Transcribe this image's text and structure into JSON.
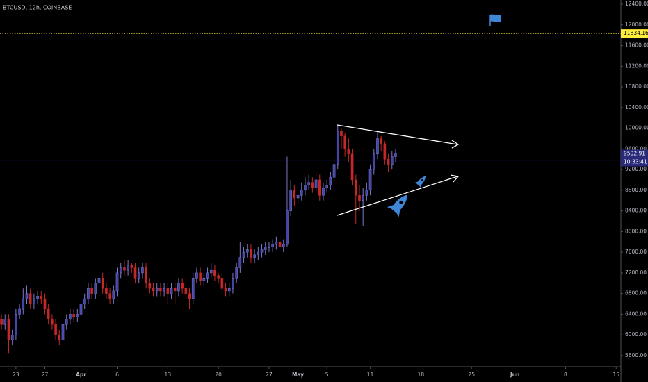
{
  "chart_data": {
    "type": "candlestick",
    "title": "BTCUSD, 12h, COINBASE",
    "up_color": "#4343a8",
    "down_color": "#c62828",
    "xlim": [
      -0.4,
      171.3
    ],
    "xticks": [
      {
        "value": 4,
        "label": "23"
      },
      {
        "value": 12,
        "label": "27"
      },
      {
        "value": 22,
        "label": "Apr"
      },
      {
        "value": 32,
        "label": "6"
      },
      {
        "value": 46,
        "label": "13"
      },
      {
        "value": 60,
        "label": "20"
      },
      {
        "value": 74,
        "label": "27"
      },
      {
        "value": 82,
        "label": "May"
      },
      {
        "value": 90,
        "label": "5"
      },
      {
        "value": 102,
        "label": "11"
      },
      {
        "value": 116,
        "label": "18"
      },
      {
        "value": 130,
        "label": "25"
      },
      {
        "value": 142,
        "label": "Jun"
      },
      {
        "value": 156,
        "label": "8"
      },
      {
        "value": 170,
        "label": "15"
      }
    ],
    "ylim": [
      5384,
      12481
    ],
    "yticks": [
      {
        "value": 5600,
        "label": "5600.00"
      },
      {
        "value": 6000,
        "label": "6000.00"
      },
      {
        "value": 6400,
        "label": "6400.00"
      },
      {
        "value": 6800,
        "label": "6800.00"
      },
      {
        "value": 7200,
        "label": "7200.00"
      },
      {
        "value": 7600,
        "label": "7600.00"
      },
      {
        "value": 8000,
        "label": "8000.00"
      },
      {
        "value": 8400,
        "label": "8400.00"
      },
      {
        "value": 8800,
        "label": "8800.00"
      },
      {
        "value": 9200,
        "label": "9200.00"
      },
      {
        "value": 9600,
        "label": "9600.00"
      },
      {
        "value": 10000,
        "label": "10000.00"
      },
      {
        "value": 10400,
        "label": "10400.00"
      },
      {
        "value": 10800,
        "label": "10800.00"
      },
      {
        "value": 11200,
        "label": "11200.00"
      },
      {
        "value": 11600,
        "label": "11600.00"
      },
      {
        "value": 12000,
        "label": "12000.00"
      },
      {
        "value": 12400,
        "label": "12400.00"
      }
    ],
    "level": {
      "value": 11834.16,
      "color": "#ffeb3b"
    },
    "last_price": {
      "value": 9502.91,
      "countdown": "10:33:41",
      "color": "#2a2a7a"
    },
    "open": [
      6300,
      6200,
      6300,
      5900,
      6000,
      6400,
      6500,
      6700,
      6800,
      6600,
      6700,
      6750,
      6700,
      6500,
      6300,
      6200,
      6000,
      5900,
      6200,
      6300,
      6400,
      6350,
      6400,
      6600,
      6700,
      6900,
      6800,
      7000,
      7100,
      6900,
      6800,
      6700,
      6850,
      7200,
      7300,
      7250,
      7350,
      7300,
      7100,
      7200,
      7300,
      7000,
      6900,
      6850,
      6900,
      6850,
      6900,
      6800,
      6900,
      6850,
      7000,
      6900,
      6800,
      6700,
      7100,
      7200,
      7050,
      7100,
      7200,
      7250,
      7150,
      7100,
      6900,
      6850,
      6900,
      7100,
      7300,
      7500,
      7600,
      7650,
      7500,
      7550,
      7600,
      7650,
      7700,
      7700,
      7750,
      7800,
      7700,
      7750,
      8400,
      8800,
      8650,
      8700,
      8800,
      8900,
      8950,
      8850,
      9000,
      8700,
      8850,
      8900,
      9050,
      9300,
      9950,
      9850,
      9600,
      9500,
      9000,
      8700,
      8600,
      8700,
      8800,
      9200,
      9500,
      9800,
      9700,
      9400,
      9300,
      9450
    ],
    "high": [
      6400,
      6400,
      6400,
      6100,
      6500,
      6600,
      6900,
      6950,
      6900,
      6800,
      6850,
      6850,
      6800,
      6600,
      6400,
      6300,
      6100,
      6300,
      6400,
      6500,
      6500,
      6500,
      6700,
      6800,
      7000,
      7000,
      7100,
      7500,
      7200,
      7000,
      6900,
      6950,
      7300,
      7400,
      7450,
      7450,
      7400,
      7400,
      7300,
      7400,
      7400,
      7100,
      7000,
      7000,
      7000,
      7000,
      7000,
      7000,
      7000,
      7100,
      7100,
      7000,
      6900,
      7200,
      7300,
      7300,
      7200,
      7300,
      7400,
      7350,
      7200,
      7200,
      7000,
      7000,
      7200,
      7400,
      7800,
      7700,
      7750,
      7750,
      7650,
      7700,
      7750,
      7800,
      7800,
      7850,
      7900,
      7900,
      7850,
      9450,
      9000,
      8900,
      8850,
      8950,
      9050,
      9100,
      9050,
      9150,
      9100,
      8950,
      9000,
      9150,
      9450,
      10050,
      10000,
      9900,
      9800,
      9600,
      9100,
      8900,
      8850,
      8950,
      9300,
      9600,
      9950,
      9850,
      9750,
      9500,
      9550,
      9600
    ],
    "low": [
      6100,
      6100,
      5650,
      5800,
      5900,
      6300,
      6400,
      6600,
      6500,
      6500,
      6600,
      6600,
      6400,
      6200,
      6100,
      5900,
      5800,
      5800,
      6100,
      6200,
      6250,
      6250,
      6300,
      6500,
      6600,
      6700,
      6700,
      6900,
      6800,
      6700,
      6600,
      6600,
      6750,
      7100,
      7150,
      7150,
      7200,
      7000,
      7000,
      7100,
      6900,
      6800,
      6750,
      6750,
      6750,
      6750,
      6600,
      6700,
      6600,
      6750,
      6800,
      6700,
      6500,
      6600,
      7000,
      6950,
      6950,
      7000,
      7100,
      7050,
      7000,
      6800,
      6750,
      6750,
      6800,
      7000,
      7200,
      7400,
      7500,
      7400,
      7400,
      7450,
      7500,
      7550,
      7600,
      7600,
      7650,
      7600,
      7600,
      7700,
      8300,
      8500,
      8550,
      8600,
      8700,
      8800,
      8750,
      8750,
      8600,
      8600,
      8750,
      8800,
      8950,
      9200,
      9600,
      9450,
      9350,
      8900,
      8150,
      8400,
      8100,
      8600,
      8700,
      9100,
      9400,
      9550,
      9300,
      9150,
      9200,
      9350
    ],
    "close": [
      6200,
      6300,
      5900,
      6000,
      6400,
      6500,
      6700,
      6800,
      6600,
      6700,
      6750,
      6700,
      6500,
      6300,
      6200,
      6000,
      5900,
      6200,
      6300,
      6400,
      6350,
      6400,
      6600,
      6700,
      6900,
      6800,
      7000,
      7100,
      6900,
      6800,
      6700,
      6850,
      7200,
      7300,
      7250,
      7350,
      7300,
      7100,
      7200,
      7300,
      7000,
      6900,
      6850,
      6900,
      6850,
      6900,
      6800,
      6900,
      6850,
      7000,
      6900,
      6800,
      6700,
      7100,
      7200,
      7050,
      7100,
      7200,
      7250,
      7150,
      7100,
      6900,
      6850,
      6900,
      7100,
      7300,
      7500,
      7600,
      7650,
      7500,
      7550,
      7600,
      7650,
      7700,
      7700,
      7750,
      7800,
      7700,
      7750,
      8400,
      8800,
      8650,
      8700,
      8800,
      8900,
      8950,
      8850,
      9000,
      8700,
      8850,
      8900,
      9050,
      9300,
      9950,
      9850,
      9600,
      9500,
      9000,
      8700,
      8600,
      8700,
      8800,
      9200,
      9500,
      9800,
      9700,
      9400,
      9300,
      9450,
      9502.91
    ]
  }
}
